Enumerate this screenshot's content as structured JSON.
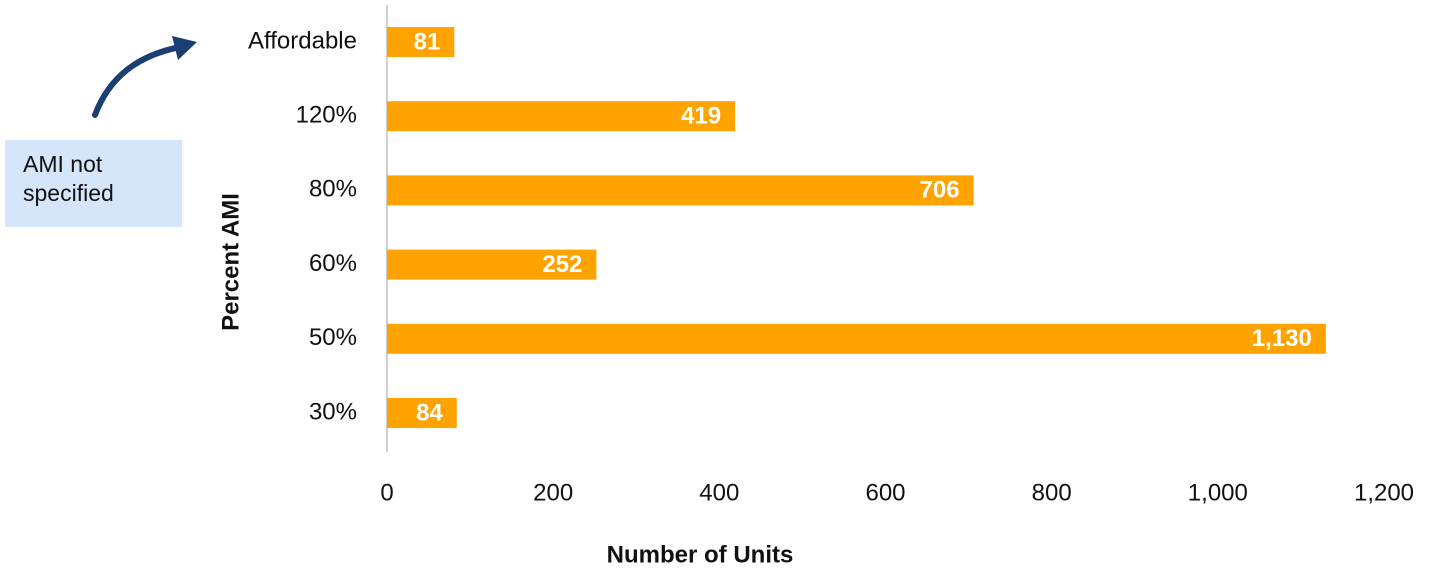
{
  "chart_data": {
    "type": "hbar",
    "categories": [
      "Affordable",
      "120%",
      "80%",
      "60%",
      "50%",
      "30%"
    ],
    "values": [
      81,
      419,
      706,
      252,
      1130,
      84
    ],
    "value_labels": [
      "81",
      "419",
      "706",
      "252",
      "1,130",
      "84"
    ],
    "color": "#ffa300",
    "xlim": [
      0,
      1200
    ],
    "xticks": [
      0,
      200,
      400,
      600,
      800,
      {
        "value": 1000,
        "label": "1,000"
      },
      {
        "value": 1200,
        "label": "1,200"
      }
    ],
    "x_label": "Number of Units",
    "y_label": "Percent AMI",
    "annotation": "AMI not specified",
    "grid": false
  }
}
